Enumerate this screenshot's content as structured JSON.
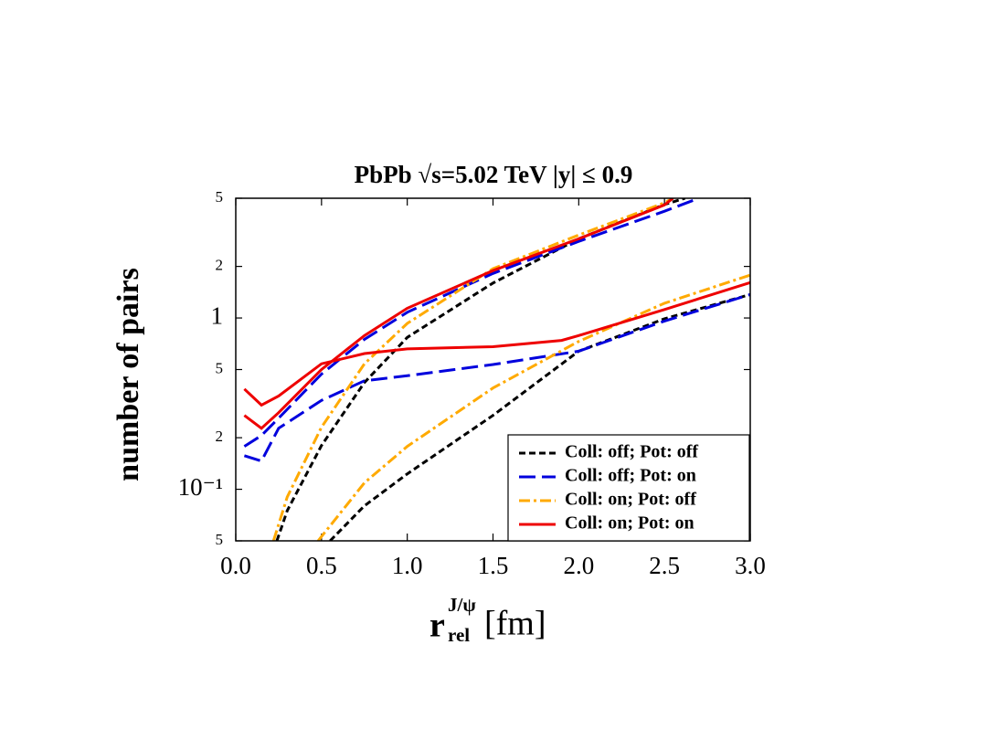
{
  "chart_data": {
    "type": "line",
    "title": "PbPb √s=5.02 TeV |y| ≤ 0.9",
    "ylabel": "number of pairs",
    "xlabel": {
      "base": "r",
      "sup": "J/ψ",
      "sub": "rel",
      "unit": "[fm]"
    },
    "xlim": [
      0,
      3.0
    ],
    "xticks": [
      {
        "value": 0,
        "label": "0.0"
      },
      0.5,
      {
        "value": 1,
        "label": "1.0"
      },
      1.5,
      {
        "value": 2,
        "label": "2.0"
      },
      2.5,
      {
        "value": 3,
        "label": "3.0"
      }
    ],
    "ylim": [
      0.05,
      5
    ],
    "yscale": "log",
    "yticks": [
      5,
      2,
      1,
      {
        "value": 0.5,
        "label": "5"
      },
      {
        "value": 0.2,
        "label": "2"
      },
      {
        "value": 0.1,
        "label": "10⁻¹"
      },
      {
        "value": 0.05,
        "label": "5"
      }
    ],
    "legend": "lower right",
    "series": [
      {
        "name": "Coll: off; Pot: off",
        "color": "#000000",
        "dash": "7,4",
        "curves": [
          {
            "x": [
              0.24,
              0.3,
              0.5,
              0.75,
              1.0,
              1.5,
              2.0,
              2.5,
              2.62
            ],
            "values": [
              0.05,
              0.075,
              0.18,
              0.42,
              0.77,
              1.6,
              2.9,
              4.6,
              5
            ]
          },
          {
            "x": [
              0.55,
              0.75,
              1.0,
              1.5,
              2.0,
              2.5,
              3.0
            ],
            "values": [
              0.05,
              0.08,
              0.123,
              0.27,
              0.64,
              0.99,
              1.37
            ]
          }
        ]
      },
      {
        "name": "Coll: off; Pot: on",
        "color": "#0000dd",
        "dash": "18,7",
        "curves": [
          {
            "x": [
              0.05,
              0.15,
              0.25,
              0.5,
              0.75,
              1.0,
              1.5,
              2.0,
              2.5,
              2.7
            ],
            "values": [
              0.178,
              0.206,
              0.26,
              0.47,
              0.75,
              1.08,
              1.82,
              2.8,
              4.2,
              5
            ]
          },
          {
            "x": [
              0.05,
              0.15,
              0.25,
              0.5,
              0.75,
              1.0,
              1.5,
              2.0,
              2.5,
              3.0
            ],
            "values": [
              0.157,
              0.146,
              0.227,
              0.33,
              0.43,
              0.46,
              0.535,
              0.64,
              0.96,
              1.37
            ]
          }
        ]
      },
      {
        "name": "Coll: on; Pot: off",
        "color": "#ffaa00",
        "dash": "12,4,3,4",
        "curves": [
          {
            "x": [
              0.22,
              0.3,
              0.5,
              0.75,
              1.0,
              1.5,
              2.0,
              2.5,
              2.55
            ],
            "values": [
              0.05,
              0.09,
              0.23,
              0.54,
              0.93,
              1.94,
              3.05,
              4.7,
              5
            ]
          },
          {
            "x": [
              0.48,
              0.75,
              1.0,
              1.5,
              2.0,
              2.5,
              3.0
            ],
            "values": [
              0.05,
              0.109,
              0.178,
              0.39,
              0.73,
              1.22,
              1.78
            ]
          }
        ]
      },
      {
        "name": "Coll: on; Pot: on",
        "color": "#ee0000",
        "dash": "none",
        "curves": [
          {
            "x": [
              0.05,
              0.15,
              0.25,
              0.5,
              0.75,
              1.0,
              1.5,
              2.0,
              2.5,
              2.55
            ],
            "values": [
              0.27,
              0.227,
              0.28,
              0.5,
              0.79,
              1.14,
              1.89,
              2.9,
              4.57,
              5
            ]
          },
          {
            "x": [
              0.05,
              0.15,
              0.25,
              0.5,
              0.75,
              1.0,
              1.5,
              1.9,
              2.0,
              2.5,
              3.0
            ],
            "values": [
              0.385,
              0.31,
              0.35,
              0.54,
              0.62,
              0.66,
              0.68,
              0.74,
              0.79,
              1.12,
              1.61
            ]
          }
        ]
      }
    ]
  }
}
